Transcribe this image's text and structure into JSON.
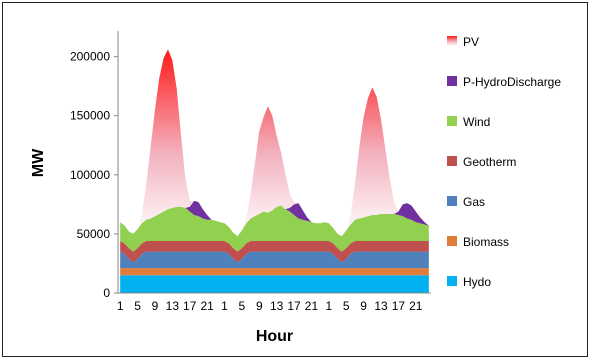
{
  "chart_data": {
    "type": "area",
    "stacked": true,
    "title": "",
    "xlabel": "Hour",
    "ylabel": "MW",
    "ylim": [
      0,
      220000
    ],
    "yticks": [
      0,
      50000,
      100000,
      150000,
      200000
    ],
    "ytick_labels": [
      "0",
      "50000",
      "100000",
      "150000",
      "200000"
    ],
    "grid": false,
    "legend_position": "right",
    "x": [
      1,
      2,
      3,
      4,
      5,
      6,
      7,
      8,
      9,
      10,
      11,
      12,
      13,
      14,
      15,
      16,
      17,
      18,
      19,
      20,
      21,
      22,
      23,
      24,
      1,
      2,
      3,
      4,
      5,
      6,
      7,
      8,
      9,
      10,
      11,
      12,
      13,
      14,
      15,
      16,
      17,
      18,
      19,
      20,
      21,
      22,
      23,
      24,
      1,
      2,
      3,
      4,
      5,
      6,
      7,
      8,
      9,
      10,
      11,
      12,
      13,
      14,
      15,
      16,
      17,
      18,
      19,
      20,
      21,
      22,
      23,
      24
    ],
    "xtick_labels": [
      "1",
      "5",
      "9",
      "13",
      "17",
      "21",
      "1",
      "5",
      "9",
      "13",
      "17",
      "21",
      "1",
      "5",
      "9",
      "13",
      "17",
      "21"
    ],
    "series": [
      {
        "name": "Hydo",
        "color": "#00b0f0",
        "values": [
          15000,
          15000,
          15000,
          15000,
          15000,
          15000,
          15000,
          15000,
          15000,
          15000,
          15000,
          15000,
          15000,
          15000,
          15000,
          15000,
          15000,
          15000,
          15000,
          15000,
          15000,
          15000,
          15000,
          15000,
          15000,
          15000,
          15000,
          15000,
          15000,
          15000,
          15000,
          15000,
          15000,
          15000,
          15000,
          15000,
          15000,
          15000,
          15000,
          15000,
          15000,
          15000,
          15000,
          15000,
          15000,
          15000,
          15000,
          15000,
          15000,
          15000,
          15000,
          15000,
          15000,
          15000,
          15000,
          15000,
          15000,
          15000,
          15000,
          15000,
          15000,
          15000,
          15000,
          15000,
          15000,
          15000,
          15000,
          15000,
          15000,
          15000,
          15000,
          15000
        ]
      },
      {
        "name": "Biomass",
        "color": "#e07b39",
        "values": [
          6000,
          6000,
          6000,
          6000,
          6000,
          6000,
          6000,
          6000,
          6000,
          6000,
          6000,
          6000,
          6000,
          6000,
          6000,
          6000,
          6000,
          6000,
          6000,
          6000,
          6000,
          6000,
          6000,
          6000,
          6000,
          6000,
          6000,
          6000,
          6000,
          6000,
          6000,
          6000,
          6000,
          6000,
          6000,
          6000,
          6000,
          6000,
          6000,
          6000,
          6000,
          6000,
          6000,
          6000,
          6000,
          6000,
          6000,
          6000,
          6000,
          6000,
          6000,
          6000,
          6000,
          6000,
          6000,
          6000,
          6000,
          6000,
          6000,
          6000,
          6000,
          6000,
          6000,
          6000,
          6000,
          6000,
          6000,
          6000,
          6000,
          6000,
          6000,
          6000
        ]
      },
      {
        "name": "Gas",
        "color": "#4f81bd",
        "values": [
          14000,
          12000,
          8000,
          5000,
          8000,
          12000,
          14000,
          14000,
          14000,
          14000,
          14000,
          14000,
          14000,
          14000,
          14000,
          14000,
          14000,
          14000,
          14000,
          14000,
          14000,
          14000,
          14000,
          14000,
          14000,
          12000,
          8000,
          5000,
          8000,
          12000,
          14000,
          14000,
          14000,
          14000,
          14000,
          14000,
          14000,
          14000,
          14000,
          14000,
          14000,
          14000,
          14000,
          14000,
          14000,
          14000,
          14000,
          14000,
          14000,
          12000,
          8000,
          5000,
          8000,
          12000,
          14000,
          14000,
          14000,
          14000,
          14000,
          14000,
          14000,
          14000,
          14000,
          14000,
          14000,
          14000,
          14000,
          14000,
          14000,
          14000,
          14000,
          14000
        ]
      },
      {
        "name": "Geotherm",
        "color": "#c0504d",
        "values": [
          9000,
          9000,
          9000,
          9000,
          9000,
          9000,
          9000,
          9000,
          9000,
          9000,
          9000,
          9000,
          9000,
          9000,
          9000,
          9000,
          9000,
          9000,
          9000,
          9000,
          9000,
          9000,
          9000,
          9000,
          9000,
          9000,
          9000,
          9000,
          9000,
          9000,
          9000,
          9000,
          9000,
          9000,
          9000,
          9000,
          9000,
          9000,
          9000,
          9000,
          9000,
          9000,
          9000,
          9000,
          9000,
          9000,
          9000,
          9000,
          9000,
          9000,
          9000,
          9000,
          9000,
          9000,
          9000,
          9000,
          9000,
          9000,
          9000,
          9000,
          9000,
          9000,
          9000,
          9000,
          9000,
          9000,
          9000,
          9000,
          9000,
          9000,
          9000,
          9000
        ]
      },
      {
        "name": "Wind",
        "color": "#92d050",
        "values": [
          16000,
          15000,
          14000,
          15000,
          16000,
          17000,
          18000,
          19000,
          21000,
          23000,
          25000,
          27000,
          28000,
          29000,
          29000,
          28000,
          25000,
          22000,
          21000,
          19000,
          18000,
          18000,
          17000,
          16000,
          15000,
          14000,
          13000,
          13000,
          15000,
          17000,
          19000,
          21000,
          23000,
          25000,
          24000,
          26000,
          29000,
          30000,
          27000,
          25000,
          22000,
          19000,
          18000,
          17000,
          16000,
          15000,
          15000,
          16000,
          15000,
          13000,
          12000,
          13000,
          15000,
          16000,
          18000,
          19000,
          20000,
          21000,
          22000,
          22000,
          23000,
          23000,
          23000,
          23000,
          22000,
          21000,
          19000,
          18000,
          16000,
          15000,
          14000,
          13000
        ]
      },
      {
        "name": "P-HydroDischarge",
        "color": "#7030a0",
        "values": [
          0,
          0,
          0,
          0,
          0,
          0,
          0,
          0,
          0,
          0,
          0,
          0,
          0,
          0,
          0,
          0,
          4000,
          12000,
          12000,
          8000,
          4000,
          0,
          0,
          0,
          0,
          0,
          0,
          0,
          0,
          0,
          0,
          0,
          0,
          0,
          0,
          0,
          0,
          0,
          0,
          3000,
          9000,
          13000,
          8000,
          3000,
          0,
          0,
          0,
          0,
          0,
          0,
          0,
          0,
          0,
          0,
          0,
          0,
          0,
          0,
          0,
          0,
          0,
          0,
          0,
          0,
          3000,
          10000,
          13000,
          12000,
          9000,
          5000,
          2000,
          0
        ]
      },
      {
        "name": "PV",
        "color": "#ff2020",
        "values": [
          0,
          0,
          0,
          0,
          0,
          8000,
          30000,
          60000,
          90000,
          115000,
          130000,
          135000,
          125000,
          100000,
          60000,
          25000,
          5000,
          0,
          0,
          0,
          0,
          0,
          0,
          0,
          0,
          0,
          0,
          0,
          0,
          5000,
          20000,
          45000,
          70000,
          80000,
          90000,
          80000,
          60000,
          45000,
          30000,
          12000,
          2000,
          0,
          0,
          0,
          0,
          0,
          0,
          0,
          0,
          0,
          0,
          0,
          0,
          8000,
          30000,
          60000,
          85000,
          100000,
          108000,
          100000,
          80000,
          55000,
          30000,
          10000,
          0,
          0,
          0,
          0,
          0,
          0,
          0,
          0
        ]
      }
    ]
  }
}
